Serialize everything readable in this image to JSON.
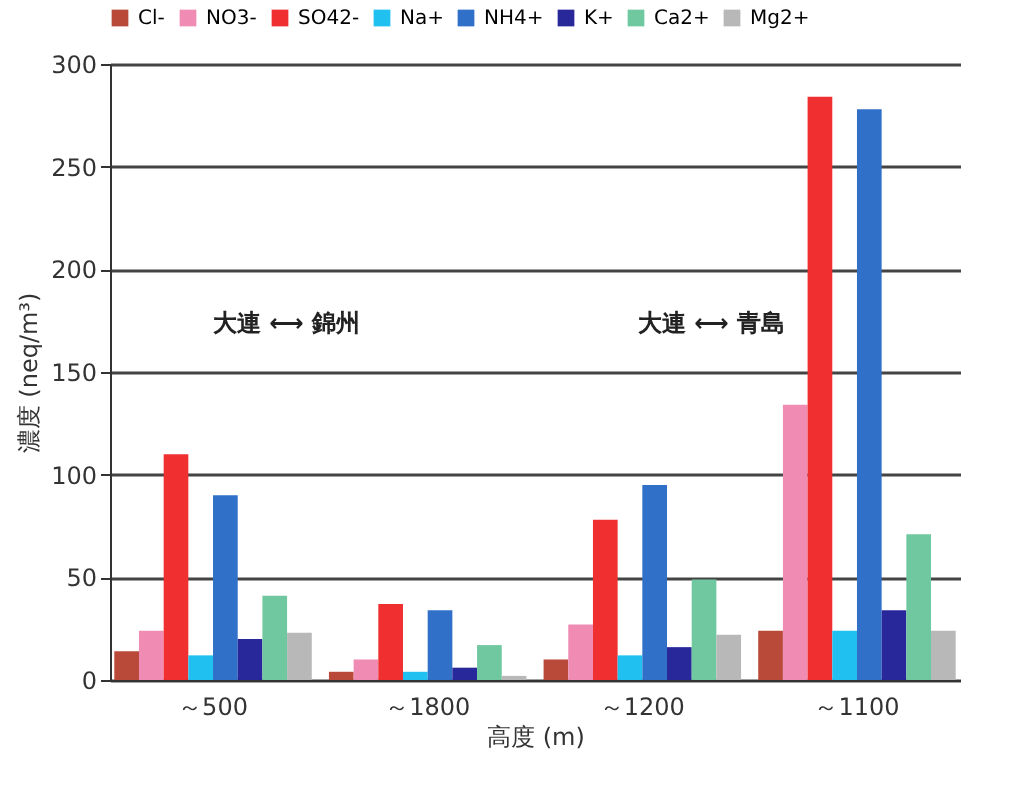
{
  "chart_data": {
    "type": "bar",
    "xlabel": "高度 (m)",
    "ylabel": "濃度 (neq/m³)",
    "categories": [
      "～500",
      "～1800",
      "～1200",
      "～1100"
    ],
    "series": [
      {
        "name": "Cl-",
        "color": "#b94a3a",
        "values": [
          14,
          4,
          10,
          24
        ]
      },
      {
        "name": "NO3-",
        "color": "#f08cb4",
        "values": [
          24,
          10,
          27,
          134
        ]
      },
      {
        "name": "SO42-",
        "color": "#f03030",
        "values": [
          110,
          37,
          78,
          284
        ]
      },
      {
        "name": "Na+",
        "color": "#20c0f0",
        "values": [
          12,
          4,
          12,
          24
        ]
      },
      {
        "name": "NH4+",
        "color": "#3070c8",
        "values": [
          90,
          34,
          95,
          278
        ]
      },
      {
        "name": "K+",
        "color": "#28289a",
        "values": [
          20,
          6,
          16,
          34
        ]
      },
      {
        "name": "Ca2+",
        "color": "#70c8a0",
        "values": [
          41,
          17,
          49,
          71
        ]
      },
      {
        "name": "Mg2+",
        "color": "#b8b8b8",
        "values": [
          23,
          2,
          22,
          24
        ]
      }
    ],
    "ylim": [
      0,
      300
    ],
    "yticks": [
      0,
      50,
      100,
      150,
      200,
      250,
      300
    ],
    "grid": "y",
    "legend": "top",
    "annotations": [
      "大連 ⟷ 錦州",
      "大連 ⟷ 青島"
    ]
  }
}
